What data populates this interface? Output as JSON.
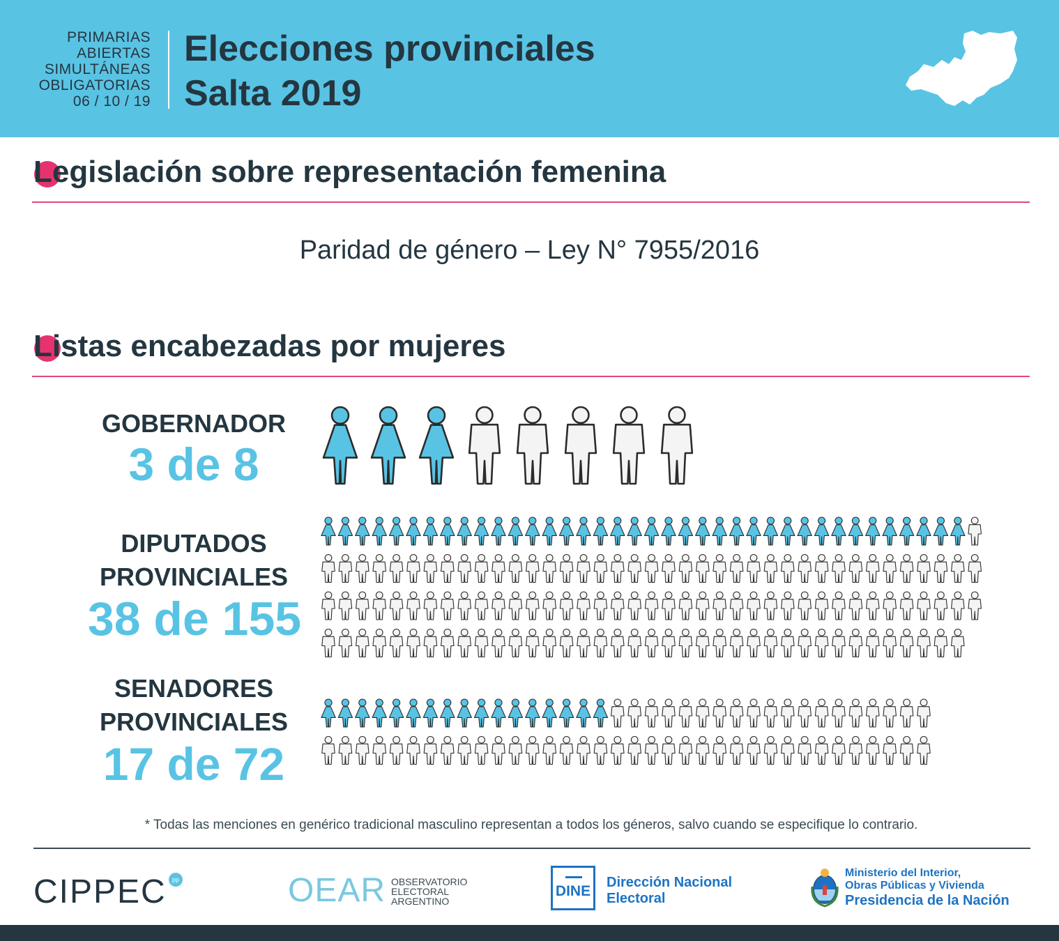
{
  "header": {
    "paso_lines": [
      "PRIMARIAS",
      "ABIERTAS",
      "SIMULTÁNEAS",
      "OBLIGATORIAS",
      "06 / 10 / 19"
    ],
    "title_line1": "Elecciones provinciales",
    "title_line2": "Salta 2019",
    "map_icon": "salta-map-icon"
  },
  "section1": {
    "title_initial": "L",
    "title_rest": "egislación sobre representación femenina",
    "law_text": "Paridad de género – Ley N° 7955/2016"
  },
  "section2": {
    "title_initial": "L",
    "title_rest": "istas encabezadas por mujeres"
  },
  "colors": {
    "women": "#59c3e4",
    "men": "#f4f4f4",
    "accent": "#e6336f",
    "dark": "#243640",
    "header": "#59c3e4",
    "blue": "#1d73c2"
  },
  "chart_data": {
    "type": "pictogram",
    "title": "Listas encabezadas por mujeres",
    "series": [
      {
        "label_lines": [
          "GOBERNADOR"
        ],
        "count_text": "3 de 8",
        "women": 3,
        "total": 8,
        "per_row": 8
      },
      {
        "label_lines": [
          "DIPUTADOS",
          "PROVINCIALES"
        ],
        "count_text": "38 de 155",
        "women": 38,
        "total": 155,
        "per_row": 39
      },
      {
        "label_lines": [
          "SENADORES",
          "PROVINCIALES"
        ],
        "count_text": "17 de 72",
        "women": 17,
        "total": 72,
        "per_row": 36
      }
    ]
  },
  "footnote": "* Todas las menciones en genérico tradicional masculino representan a todos los géneros, salvo cuando se especifique lo contrario.",
  "footer": {
    "cippec": "CIPPEC",
    "cippec_badge": "pp",
    "oear": "OEAR",
    "oear_sub": [
      "OBSERVATORIO",
      "ELECTORAL",
      "ARGENTINO"
    ],
    "dine_box": "DINE",
    "dine_name": [
      "Dirección Nacional",
      "Electoral"
    ],
    "ministry": [
      "Ministerio del Interior,",
      "Obras Públicas y Vivienda",
      "Presidencia de la Nación"
    ]
  }
}
